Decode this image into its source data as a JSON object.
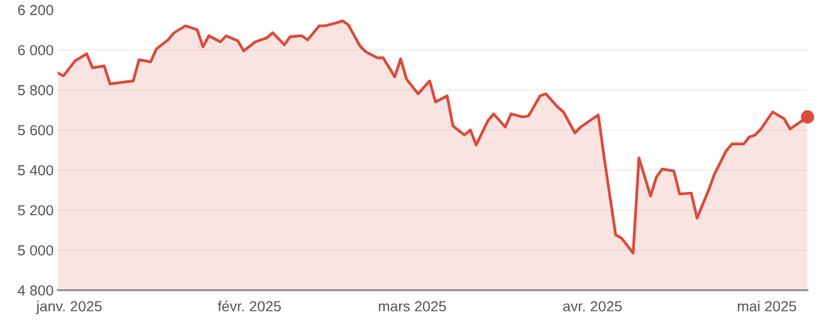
{
  "chart_data": {
    "type": "area",
    "x": [
      "2024-12-30",
      "2024-12-31",
      "2025-01-02",
      "2025-01-04",
      "2025-01-05",
      "2025-01-07",
      "2025-01-08",
      "2025-01-12",
      "2025-01-13",
      "2025-01-15",
      "2025-01-16",
      "2025-01-18",
      "2025-01-19",
      "2025-01-21",
      "2025-01-23",
      "2025-01-24",
      "2025-01-25",
      "2025-01-27",
      "2025-01-28",
      "2025-01-30",
      "2025-01-31",
      "2025-02-02",
      "2025-02-04",
      "2025-02-05",
      "2025-02-07",
      "2025-02-08",
      "2025-02-10",
      "2025-02-11",
      "2025-02-13",
      "2025-02-14",
      "2025-02-16",
      "2025-02-17",
      "2025-02-18",
      "2025-02-20",
      "2025-02-21",
      "2025-02-23",
      "2025-02-24",
      "2025-02-26",
      "2025-02-27",
      "2025-02-28",
      "2025-03-02",
      "2025-03-04",
      "2025-03-05",
      "2025-03-07",
      "2025-03-08",
      "2025-03-10",
      "2025-03-11",
      "2025-03-12",
      "2025-03-14",
      "2025-03-15",
      "2025-03-17",
      "2025-03-18",
      "2025-03-20",
      "2025-03-21",
      "2025-03-23",
      "2025-03-24",
      "2025-03-26",
      "2025-03-27",
      "2025-03-29",
      "2025-03-30",
      "2025-03-31",
      "2025-04-02",
      "2025-04-03",
      "2025-04-05",
      "2025-04-06",
      "2025-04-08",
      "2025-04-09",
      "2025-04-11",
      "2025-04-12",
      "2025-04-13",
      "2025-04-15",
      "2025-04-16",
      "2025-04-18",
      "2025-04-19",
      "2025-04-21",
      "2025-04-22",
      "2025-04-24",
      "2025-04-25",
      "2025-04-27",
      "2025-04-28",
      "2025-04-29",
      "2025-04-30",
      "2025-05-02",
      "2025-05-04",
      "2025-05-05",
      "2025-05-08"
    ],
    "series": [
      {
        "color": "#db4b3c",
        "values": [
          5885,
          5870,
          5945,
          5980,
          5910,
          5920,
          5830,
          5845,
          5950,
          5940,
          6005,
          6050,
          6085,
          6120,
          6100,
          6015,
          6070,
          6040,
          6070,
          6045,
          5995,
          6040,
          6060,
          6085,
          6025,
          6065,
          6070,
          6050,
          6120,
          6120,
          6135,
          6145,
          6125,
          6020,
          5990,
          5960,
          5960,
          5865,
          5955,
          5855,
          5780,
          5845,
          5740,
          5770,
          5620,
          5575,
          5600,
          5525,
          5645,
          5680,
          5615,
          5680,
          5665,
          5670,
          5770,
          5780,
          5715,
          5690,
          5585,
          5615,
          5635,
          5675,
          5465,
          5075,
          5060,
          4985,
          5460,
          5270,
          5365,
          5405,
          5395,
          5280,
          5285,
          5160,
          5300,
          5380,
          5495,
          5530,
          5530,
          5565,
          5575,
          5605,
          5690,
          5655,
          5605,
          5665
        ]
      }
    ],
    "xlim": [
      "2024-12-30",
      "2025-05-08"
    ],
    "xticks": [
      {
        "value": "2025-01-01",
        "label": "janv. 2025"
      },
      {
        "value": "2025-02-01",
        "label": "févr. 2025"
      },
      {
        "value": "2025-03-01",
        "label": "mars 2025"
      },
      {
        "value": "2025-04-01",
        "label": "avr. 2025"
      },
      {
        "value": "2025-05-01",
        "label": "mai 2025"
      }
    ],
    "ylim": [
      4800,
      6200
    ],
    "yticks": [
      {
        "value": 4800,
        "label": "4 800"
      },
      {
        "value": 5000,
        "label": "5 000"
      },
      {
        "value": 5200,
        "label": "5 200"
      },
      {
        "value": 5400,
        "label": "5 400"
      },
      {
        "value": 5600,
        "label": "5 600"
      },
      {
        "value": 5800,
        "label": "5 800"
      },
      {
        "value": 6000,
        "label": "6 000"
      },
      {
        "value": 6200,
        "label": "6 200"
      }
    ],
    "grid": "y"
  }
}
